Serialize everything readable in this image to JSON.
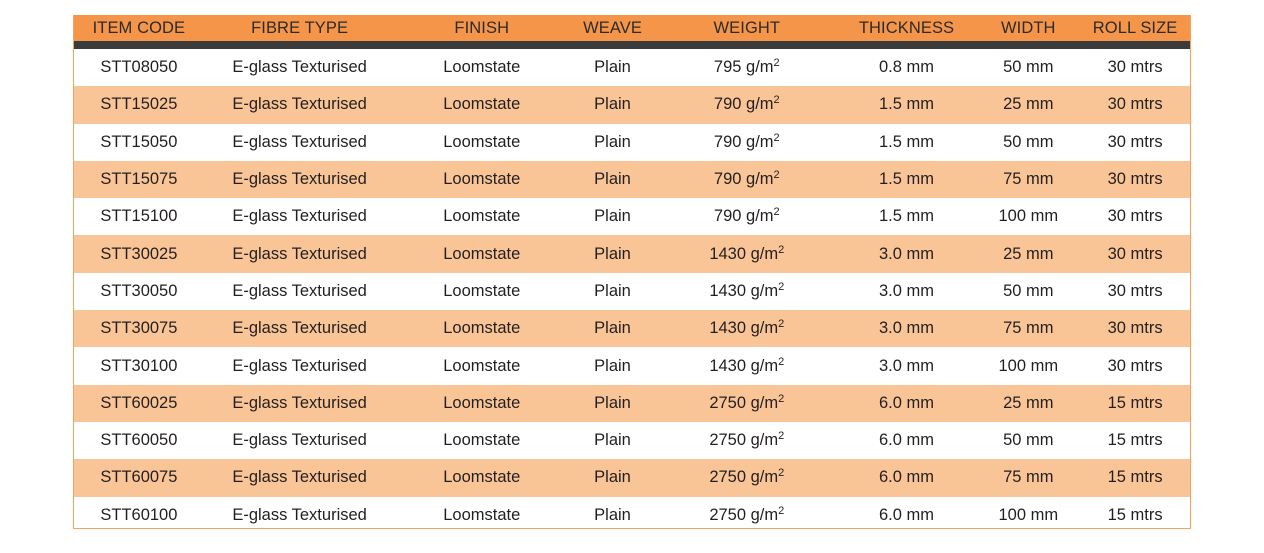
{
  "table": {
    "headers": [
      "ITEM CODE",
      "FIBRE TYPE",
      "FINISH",
      "WEAVE",
      "WEIGHT",
      "THICKNESS",
      "WIDTH",
      "ROLL SIZE"
    ],
    "weight_unit": "g/m",
    "weight_exp": "2",
    "rows": [
      {
        "code": "STT08050",
        "fibre": "E-glass Texturised",
        "finish": "Loomstate",
        "weave": "Plain",
        "weight": "795",
        "thickness": "0.8 mm",
        "width": "50 mm",
        "roll": "30 mtrs"
      },
      {
        "code": "STT15025",
        "fibre": "E-glass Texturised",
        "finish": "Loomstate",
        "weave": "Plain",
        "weight": "790",
        "thickness": "1.5 mm",
        "width": "25 mm",
        "roll": "30 mtrs"
      },
      {
        "code": "STT15050",
        "fibre": "E-glass Texturised",
        "finish": "Loomstate",
        "weave": "Plain",
        "weight": "790",
        "thickness": "1.5 mm",
        "width": "50 mm",
        "roll": "30 mtrs"
      },
      {
        "code": "STT15075",
        "fibre": "E-glass Texturised",
        "finish": "Loomstate",
        "weave": "Plain",
        "weight": "790",
        "thickness": "1.5 mm",
        "width": "75 mm",
        "roll": "30 mtrs"
      },
      {
        "code": "STT15100",
        "fibre": "E-glass Texturised",
        "finish": "Loomstate",
        "weave": "Plain",
        "weight": "790",
        "thickness": "1.5 mm",
        "width": "100 mm",
        "roll": "30 mtrs"
      },
      {
        "code": "STT30025",
        "fibre": "E-glass Texturised",
        "finish": "Loomstate",
        "weave": "Plain",
        "weight": "1430",
        "thickness": "3.0 mm",
        "width": "25 mm",
        "roll": "30 mtrs"
      },
      {
        "code": "STT30050",
        "fibre": "E-glass Texturised",
        "finish": "Loomstate",
        "weave": "Plain",
        "weight": "1430",
        "thickness": "3.0 mm",
        "width": "50 mm",
        "roll": "30 mtrs"
      },
      {
        "code": "STT30075",
        "fibre": "E-glass Texturised",
        "finish": "Loomstate",
        "weave": "Plain",
        "weight": "1430",
        "thickness": "3.0 mm",
        "width": "75 mm",
        "roll": "30 mtrs"
      },
      {
        "code": "STT30100",
        "fibre": "E-glass Texturised",
        "finish": "Loomstate",
        "weave": "Plain",
        "weight": "1430",
        "thickness": "3.0 mm",
        "width": "100 mm",
        "roll": "30 mtrs"
      },
      {
        "code": "STT60025",
        "fibre": "E-glass Texturised",
        "finish": "Loomstate",
        "weave": "Plain",
        "weight": "2750",
        "thickness": "6.0 mm",
        "width": "25 mm",
        "roll": "15 mtrs"
      },
      {
        "code": "STT60050",
        "fibre": "E-glass Texturised",
        "finish": "Loomstate",
        "weave": "Plain",
        "weight": "2750",
        "thickness": "6.0 mm",
        "width": "50 mm",
        "roll": "15 mtrs"
      },
      {
        "code": "STT60075",
        "fibre": "E-glass Texturised",
        "finish": "Loomstate",
        "weave": "Plain",
        "weight": "2750",
        "thickness": "6.0 mm",
        "width": "75 mm",
        "roll": "15 mtrs"
      },
      {
        "code": "STT60100",
        "fibre": "E-glass Texturised",
        "finish": "Loomstate",
        "weave": "Plain",
        "weight": "2750",
        "thickness": "6.0 mm",
        "width": "100 mm",
        "roll": "15 mtrs"
      }
    ]
  },
  "colors": {
    "header_bg": "#f5954a",
    "header_bar": "#3b3b3b",
    "alt_row_bg": "#f9c596",
    "border": "#f7a15a"
  }
}
